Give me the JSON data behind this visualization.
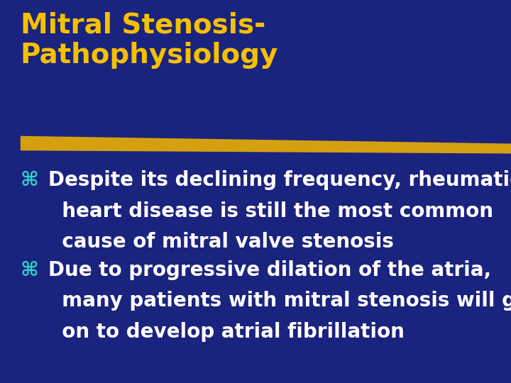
{
  "background_color": "#1a237e",
  "title_line1": "Mitral Stenosis-",
  "title_line2": "Pathophysiology",
  "title_color": "#f5c000",
  "title_fontsize": 28,
  "divider_color": "#d4a010",
  "bullet_symbol": "⌘",
  "bullet_color": "#2ecece",
  "bullet_fontsize": 20,
  "body_color": "#ffffff",
  "body_fontsize": 20,
  "bullet1_line1": "Despite its declining frequency, rheumatic",
  "bullet1_line2": "  heart disease is still the most common",
  "bullet1_line3": "  cause of mitral valve stenosis",
  "bullet2_line1": "Due to progressive dilation of the atria,",
  "bullet2_line2": "  many patients with mitral stenosis will go",
  "bullet2_line3": "  on to develop atrial fibrillation"
}
